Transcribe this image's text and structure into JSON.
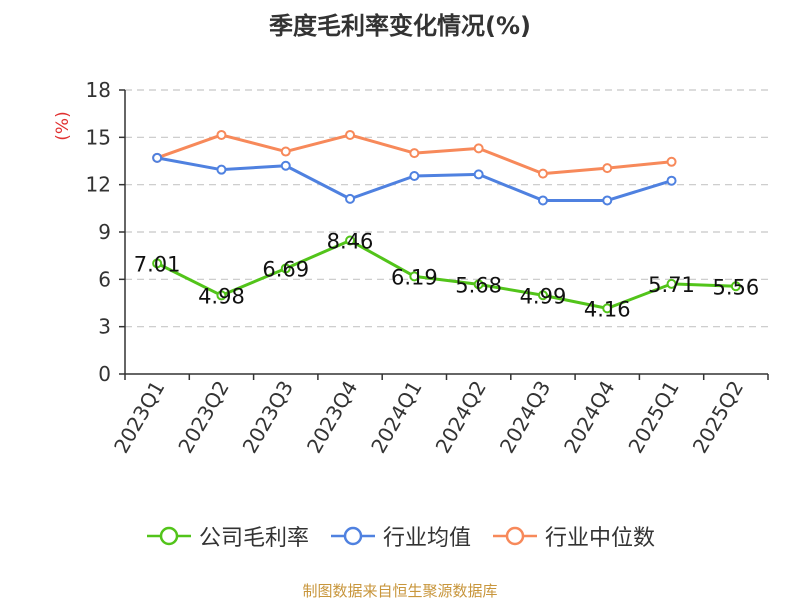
{
  "chart_data": {
    "type": "line",
    "title": "季度毛利率变化情况(%)",
    "ylabel": "(%)",
    "xlabel": "",
    "ylim": [
      0,
      18
    ],
    "yticks": [
      0,
      3,
      6,
      9,
      12,
      15,
      18
    ],
    "grid": true,
    "legend_position": "bottom",
    "categories": [
      "2023Q1",
      "2023Q2",
      "2023Q3",
      "2023Q4",
      "2024Q1",
      "2024Q2",
      "2024Q3",
      "2024Q4",
      "2025Q1",
      "2025Q2"
    ],
    "series": [
      {
        "name": "公司毛利率",
        "color": "#52c41a",
        "labels": true,
        "values": [
          7.01,
          4.98,
          6.69,
          8.46,
          6.19,
          5.68,
          4.99,
          4.16,
          5.71,
          5.56
        ]
      },
      {
        "name": "行业均值",
        "color": "#4f81e0",
        "labels": false,
        "values": [
          13.7,
          12.95,
          13.2,
          11.1,
          12.55,
          12.65,
          11.0,
          11.0,
          12.25,
          null
        ]
      },
      {
        "name": "行业中位数",
        "color": "#f7895a",
        "labels": false,
        "values": [
          13.7,
          15.15,
          14.1,
          15.15,
          14.0,
          14.3,
          12.7,
          13.05,
          13.45,
          null
        ]
      }
    ]
  },
  "source_text": "制图数据来自恒生聚源数据库"
}
